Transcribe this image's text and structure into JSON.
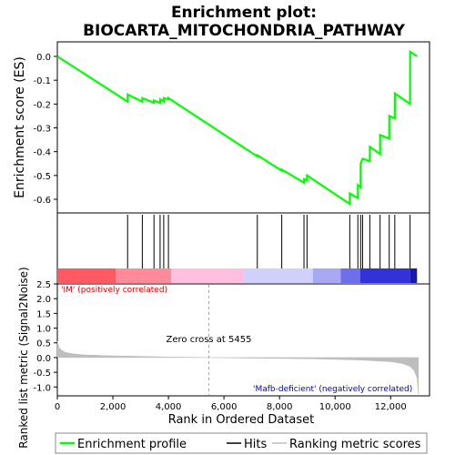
{
  "chart_data": {
    "type": "line",
    "title": "Enrichment plot:\nBIOCARTA_MITOCHONDRIA_PATHWAY",
    "title_lines": [
      "Enrichment plot:",
      "BIOCARTA_MITOCHONDRIA_PATHWAY"
    ],
    "es_panel": {
      "ylabel": "Enrichment score (ES)",
      "ylim": [
        -0.65,
        0.05
      ],
      "yticks": [
        0.0,
        -0.1,
        -0.2,
        -0.3,
        -0.4,
        -0.5,
        -0.6
      ],
      "ytick_labels": [
        "0.0",
        "-0.1",
        "-0.2",
        "-0.3",
        "-0.4",
        "-0.5",
        "-0.6"
      ],
      "grid": false,
      "series": [
        {
          "name": "Enrichment profile",
          "color": "#00ff00",
          "x": [
            0,
            2530,
            2531,
            3060,
            3061,
            3480,
            3481,
            3700,
            3701,
            3830,
            3831,
            4000,
            4001,
            7200,
            7201,
            8080,
            8081,
            8880,
            8881,
            8990,
            8991,
            10530,
            10531,
            10820,
            10821,
            10920,
            10921,
            10990,
            10991,
            11250,
            11251,
            11620,
            11621,
            11950,
            11951,
            12150,
            12151,
            12700,
            12701,
            12950
          ],
          "y": [
            0.0,
            -0.19,
            -0.16,
            -0.19,
            -0.175,
            -0.195,
            -0.185,
            -0.195,
            -0.18,
            -0.19,
            -0.175,
            -0.18,
            -0.175,
            -0.42,
            -0.415,
            -0.48,
            -0.475,
            -0.53,
            -0.515,
            -0.52,
            -0.5,
            -0.62,
            -0.575,
            -0.595,
            -0.54,
            -0.55,
            -0.45,
            -0.43,
            -0.43,
            -0.44,
            -0.38,
            -0.41,
            -0.33,
            -0.345,
            -0.25,
            -0.26,
            -0.155,
            -0.2,
            0.02,
            0.0
          ]
        }
      ]
    },
    "hits": {
      "x": [
        2530,
        3060,
        3480,
        3700,
        3830,
        4000,
        7200,
        8080,
        8880,
        8990,
        10530,
        10820,
        10920,
        10990,
        11250,
        11620,
        11950,
        12150,
        12700
      ],
      "color": "#000000"
    },
    "ranking_panel": {
      "ylabel": "Ranked list metric (Signal2Noise)",
      "xlabel": "Rank in Ordered Dataset",
      "ylim": [
        -1.3,
        2.5
      ],
      "yticks": [
        2.5,
        2.0,
        1.5,
        1.0,
        0.5,
        0.0,
        -0.5,
        -1.0
      ],
      "ytick_labels": [
        "2.5",
        "2.0",
        "1.5",
        "1.0",
        "0.5",
        "0.0",
        "-0.5",
        "-1.0"
      ],
      "xlim": [
        0,
        13400
      ],
      "xticks": [
        0,
        2000,
        4000,
        6000,
        8000,
        10000,
        12000
      ],
      "xtick_labels": [
        "0",
        "2,000",
        "4,000",
        "6,000",
        "8,000",
        "10,000",
        "12,000"
      ],
      "zero_cross": 5455,
      "zero_cross_label": "Zero cross at 5455",
      "positive_label": "'IM' (positively correlated)",
      "negative_label": "'Mafb-deficient' (negatively correlated)",
      "metric_x": [
        0,
        60,
        150,
        300,
        600,
        1000,
        2000,
        3000,
        4000,
        5000,
        5455,
        6000,
        7000,
        8000,
        9000,
        10000,
        11000,
        12000,
        12400,
        12700,
        12850,
        12950,
        13000
      ],
      "metric_y": [
        0.55,
        0.35,
        0.25,
        0.17,
        0.12,
        0.09,
        0.06,
        0.04,
        0.02,
        0.01,
        0.0,
        -0.01,
        -0.02,
        -0.03,
        -0.04,
        -0.06,
        -0.09,
        -0.14,
        -0.2,
        -0.3,
        -0.45,
        -0.7,
        -1.25
      ],
      "fill_color": "#bebebe"
    },
    "heatmap_bar": {
      "bands": [
        {
          "from": 0,
          "to": 2100,
          "color": "#ff5a64"
        },
        {
          "from": 2100,
          "to": 4100,
          "color": "#ff8a9a"
        },
        {
          "from": 4100,
          "to": 6700,
          "color": "#ffc0e0"
        },
        {
          "from": 6700,
          "to": 9200,
          "color": "#d0d0fa"
        },
        {
          "from": 9200,
          "to": 10200,
          "color": "#a8a8f4"
        },
        {
          "from": 10200,
          "to": 10900,
          "color": "#6f6fec"
        },
        {
          "from": 10900,
          "to": 12700,
          "color": "#3232d8"
        },
        {
          "from": 12700,
          "to": 12950,
          "color": "#1818b0"
        }
      ]
    },
    "legend": {
      "placement": "bottom",
      "entries": [
        {
          "label": "Enrichment profile",
          "color": "#00ff00"
        },
        {
          "label": "Hits",
          "color": "#000000"
        },
        {
          "label": "Ranking metric scores",
          "color": "#bebebe"
        }
      ]
    }
  }
}
